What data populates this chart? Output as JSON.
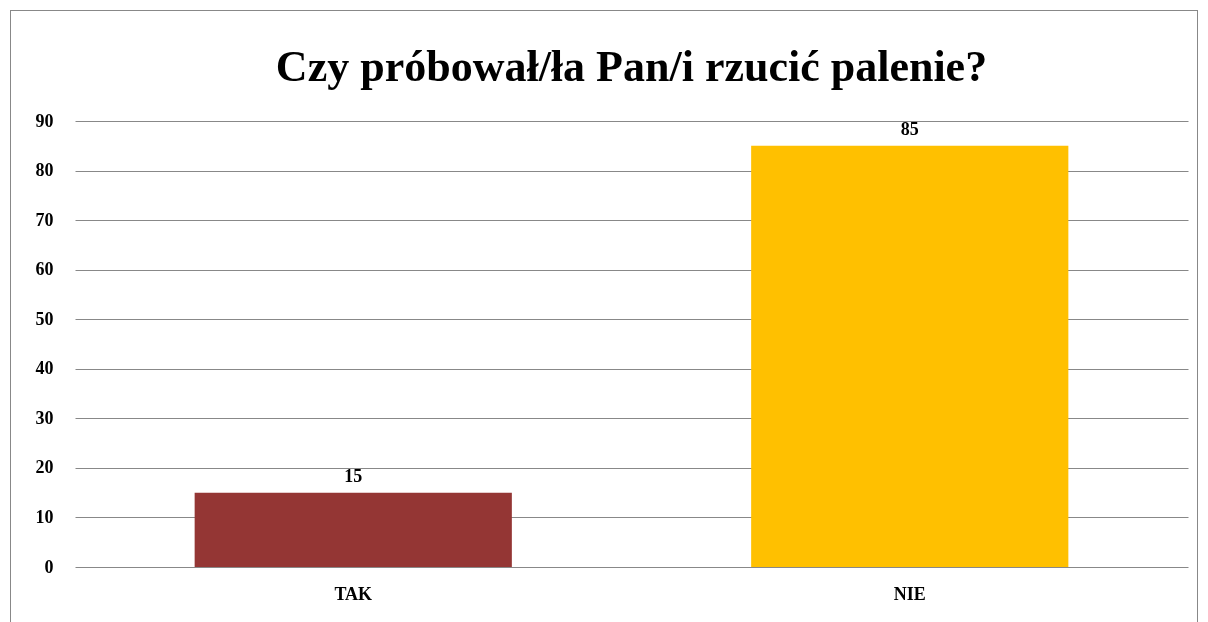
{
  "chart_data": {
    "type": "bar",
    "title": "Czy próbował/ła Pan/i rzucić palenie?",
    "categories": [
      "TAK",
      "NIE"
    ],
    "values": [
      15,
      85
    ],
    "colors": [
      "#943634",
      "#ffc000"
    ],
    "ylim": [
      0,
      90
    ],
    "yticks": [
      0,
      10,
      20,
      30,
      40,
      50,
      60,
      70,
      80,
      90
    ],
    "grid": "y",
    "data_labels": true
  }
}
